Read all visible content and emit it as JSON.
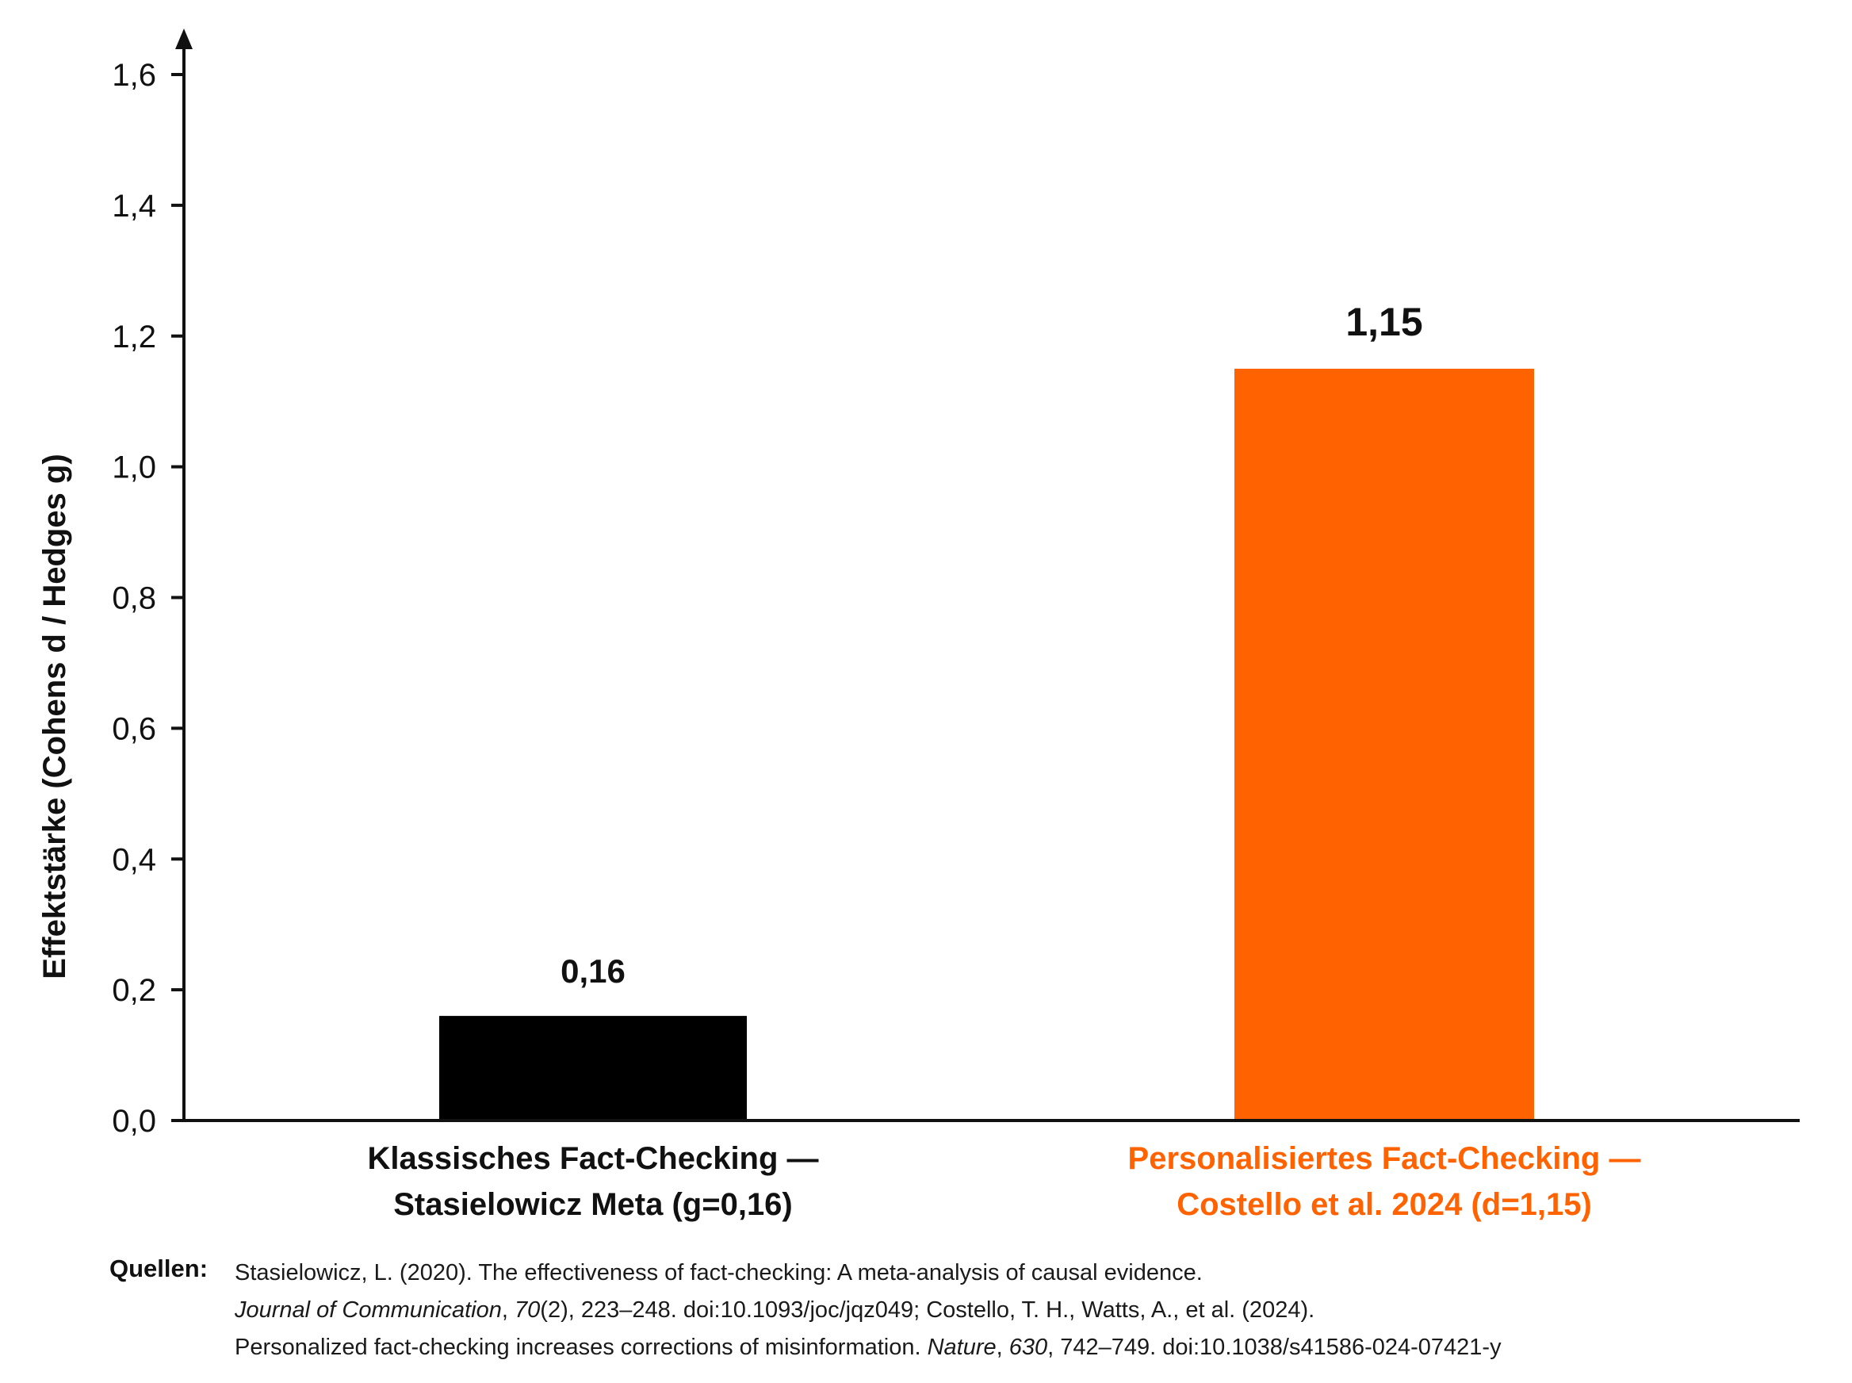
{
  "chart_data": {
    "type": "bar",
    "categories": [
      [
        "Klassisches Fact-Checking —",
        "Stasielowicz Meta (g=0,16)"
      ],
      [
        "Personalisiertes Fact-Checking —",
        "Costello et al. 2024 (d=1,15)"
      ]
    ],
    "values": [
      0.16,
      1.15
    ],
    "value_labels": [
      "0,16",
      "1,15"
    ],
    "bar_colors": [
      "#000000",
      "#ff6200"
    ],
    "label_colors": [
      "#111111",
      "#ff6200"
    ],
    "ylabel": "Effektstärke (Cohens d / Hedges g)",
    "ylim": [
      0,
      1.6
    ],
    "yticks": [
      0.0,
      0.2,
      0.4,
      0.6,
      0.8,
      1.0,
      1.2,
      1.4,
      1.6
    ],
    "ytick_labels": [
      "0,0",
      "0,2",
      "0,4",
      "0,6",
      "0,8",
      "1,0",
      "1,2",
      "1,4",
      "1,6"
    ],
    "grid": false
  },
  "sources": {
    "label": "Quellen:",
    "line1": "Stasielowicz, L. (2020). The effectiveness of fact-checking: A meta-analysis of causal evidence.",
    "line2_journal": "Journal of Communication",
    "line2_sep1": ", ",
    "line2_volume": "70",
    "line2_rest": "(2), 223–248. doi:10.1093/joc/jqz049; Costello, T. H., Watts, A., et al. (2024).",
    "line3_pre": "Personalized fact-checking increases corrections of misinformation. ",
    "line3_journal": "Nature",
    "line3_sep": ", ",
    "line3_volume": "630",
    "line3_rest": ", 742–749. doi:10.1038/s41586-024-07421-y"
  }
}
